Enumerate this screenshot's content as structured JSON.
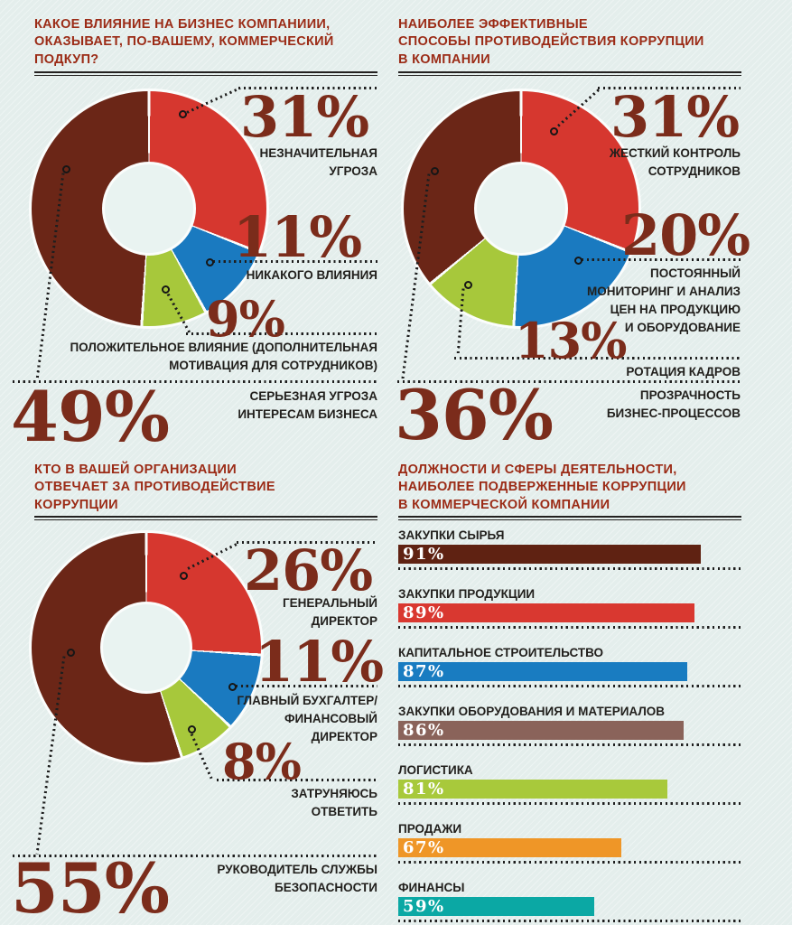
{
  "page": {
    "background": "#e4eeec",
    "title_color": "#9b2b16",
    "number_color": "#7b2c1b",
    "label_color": "#22201d",
    "dotted_line_color": "#1e1e1e"
  },
  "chart_data": [
    {
      "id": "bribery-influence",
      "type": "pie",
      "donut": true,
      "legend_position": "callouts",
      "title": "КАКОЕ ВЛИЯНИЕ НА БИЗНЕС КОМПАНИИИ,\nОКАЗЫВАЕТ, ПО-ВАШЕМУ, КОММЕРЧЕСКИЙ\nПОДКУП?",
      "segments": [
        {
          "label": "НЕЗНАЧИТЕЛЬНАЯ\nУГРОЗА",
          "value": 31,
          "pct": "31%",
          "color": "#d6372f"
        },
        {
          "label": "НИКАКОГО ВЛИЯНИЯ",
          "value": 11,
          "pct": "11%",
          "color": "#1a7ac0"
        },
        {
          "label": "ПОЛОЖИТЕЛЬНОЕ ВЛИЯНИЕ (ДОПОЛНИТЕЛЬНАЯ\nМОТИВАЦИЯ ДЛЯ СОТРУДНИКОВ)",
          "value": 9,
          "pct": "9%",
          "color": "#a7c83b"
        },
        {
          "label": "СЕРЬЕЗНАЯ УГРОЗА\nИНТЕРЕСАМ БИЗНЕСА",
          "value": 49,
          "pct": "49%",
          "color": "#6b2617"
        }
      ]
    },
    {
      "id": "anticorruption-methods",
      "type": "pie",
      "donut": true,
      "legend_position": "callouts",
      "title": "НАИБОЛЕЕ ЭФФЕКТИВНЫЕ\nСПОСОБЫ ПРОТИВОДЕЙСТВИЯ КОРРУПЦИИ\nВ КОМПАНИИ",
      "segments": [
        {
          "label": "ЖЕСТКИЙ КОНТРОЛЬ\nСОТРУДНИКОВ",
          "value": 31,
          "pct": "31%",
          "color": "#d6372f"
        },
        {
          "label": "ПОСТОЯННЫЙ\nМОНИТОРИНГ И АНАЛИЗ\nЦЕН НА ПРОДУКЦИЮ\nИ ОБОРУДОВАНИЕ",
          "value": 20,
          "pct": "20%",
          "color": "#1a7ac0"
        },
        {
          "label": "РОТАЦИЯ КАДРОВ",
          "value": 13,
          "pct": "13%",
          "color": "#a7c83b"
        },
        {
          "label": "ПРОЗРАЧНОСТЬ\nБИЗНЕС-ПРОЦЕССОВ",
          "value": 36,
          "pct": "36%",
          "color": "#6b2617"
        }
      ]
    },
    {
      "id": "responsible-person",
      "type": "pie",
      "donut": true,
      "legend_position": "callouts",
      "title": "КТО В ВАШЕЙ ОРГАНИЗАЦИИ\nОТВЕЧАЕТ ЗА ПРОТИВОДЕЙСТВИЕ\nКОРРУПЦИИ",
      "segments": [
        {
          "label": "ГЕНЕРАЛЬНЫЙ\nДИРЕКТОР",
          "value": 26,
          "pct": "26%",
          "color": "#d6372f"
        },
        {
          "label": "ГЛАВНЫЙ БУХГАЛТЕР/\nФИНАНСОВЫЙ\nДИРЕКТОР",
          "value": 11,
          "pct": "11%",
          "color": "#1a7ac0"
        },
        {
          "label": "ЗАТРУНЯЮСЬ\nОТВЕТИТЬ",
          "value": 8,
          "pct": "8%",
          "color": "#a7c83b"
        },
        {
          "label": "РУКОВОДИТЕЛЬ СЛУЖБЫ\nБЕЗОПАСНОСТИ",
          "value": 55,
          "pct": "55%",
          "color": "#6b2617"
        }
      ]
    },
    {
      "id": "corruption-prone-areas",
      "type": "bar",
      "orientation": "horizontal",
      "xlim": [
        0,
        100
      ],
      "grid": false,
      "title": "ДОЛЖНОСТИ И СФЕРЫ ДЕЯТЕЛЬНОСТИ,\nНАИБОЛЕЕ ПОДВЕРЖЕННЫЕ КОРРУПЦИИ\nВ КОММЕРЧЕСКОЙ КОМПАНИИ",
      "categories": [
        "ЗАКУПКИ СЫРЬЯ",
        "ЗАКУПКИ ПРОДУКЦИИ",
        "КАПИТАЛЬНОЕ СТРОИТЕЛЬСТВО",
        "ЗАКУПКИ ОБОРУДОВАНИЯ И МАТЕРИАЛОВ",
        "ЛОГИСТИКА",
        "ПРОДАЖИ",
        "ФИНАНСЫ"
      ],
      "values": [
        91,
        89,
        87,
        86,
        81,
        67,
        59
      ],
      "pct_labels": [
        "91%",
        "89%",
        "87%",
        "86%",
        "81%",
        "67%",
        "59%"
      ],
      "colors": [
        "#5f2212",
        "#d93830",
        "#197cc1",
        "#8a635a",
        "#a8c93b",
        "#ef9627",
        "#0ba8a4"
      ]
    }
  ]
}
